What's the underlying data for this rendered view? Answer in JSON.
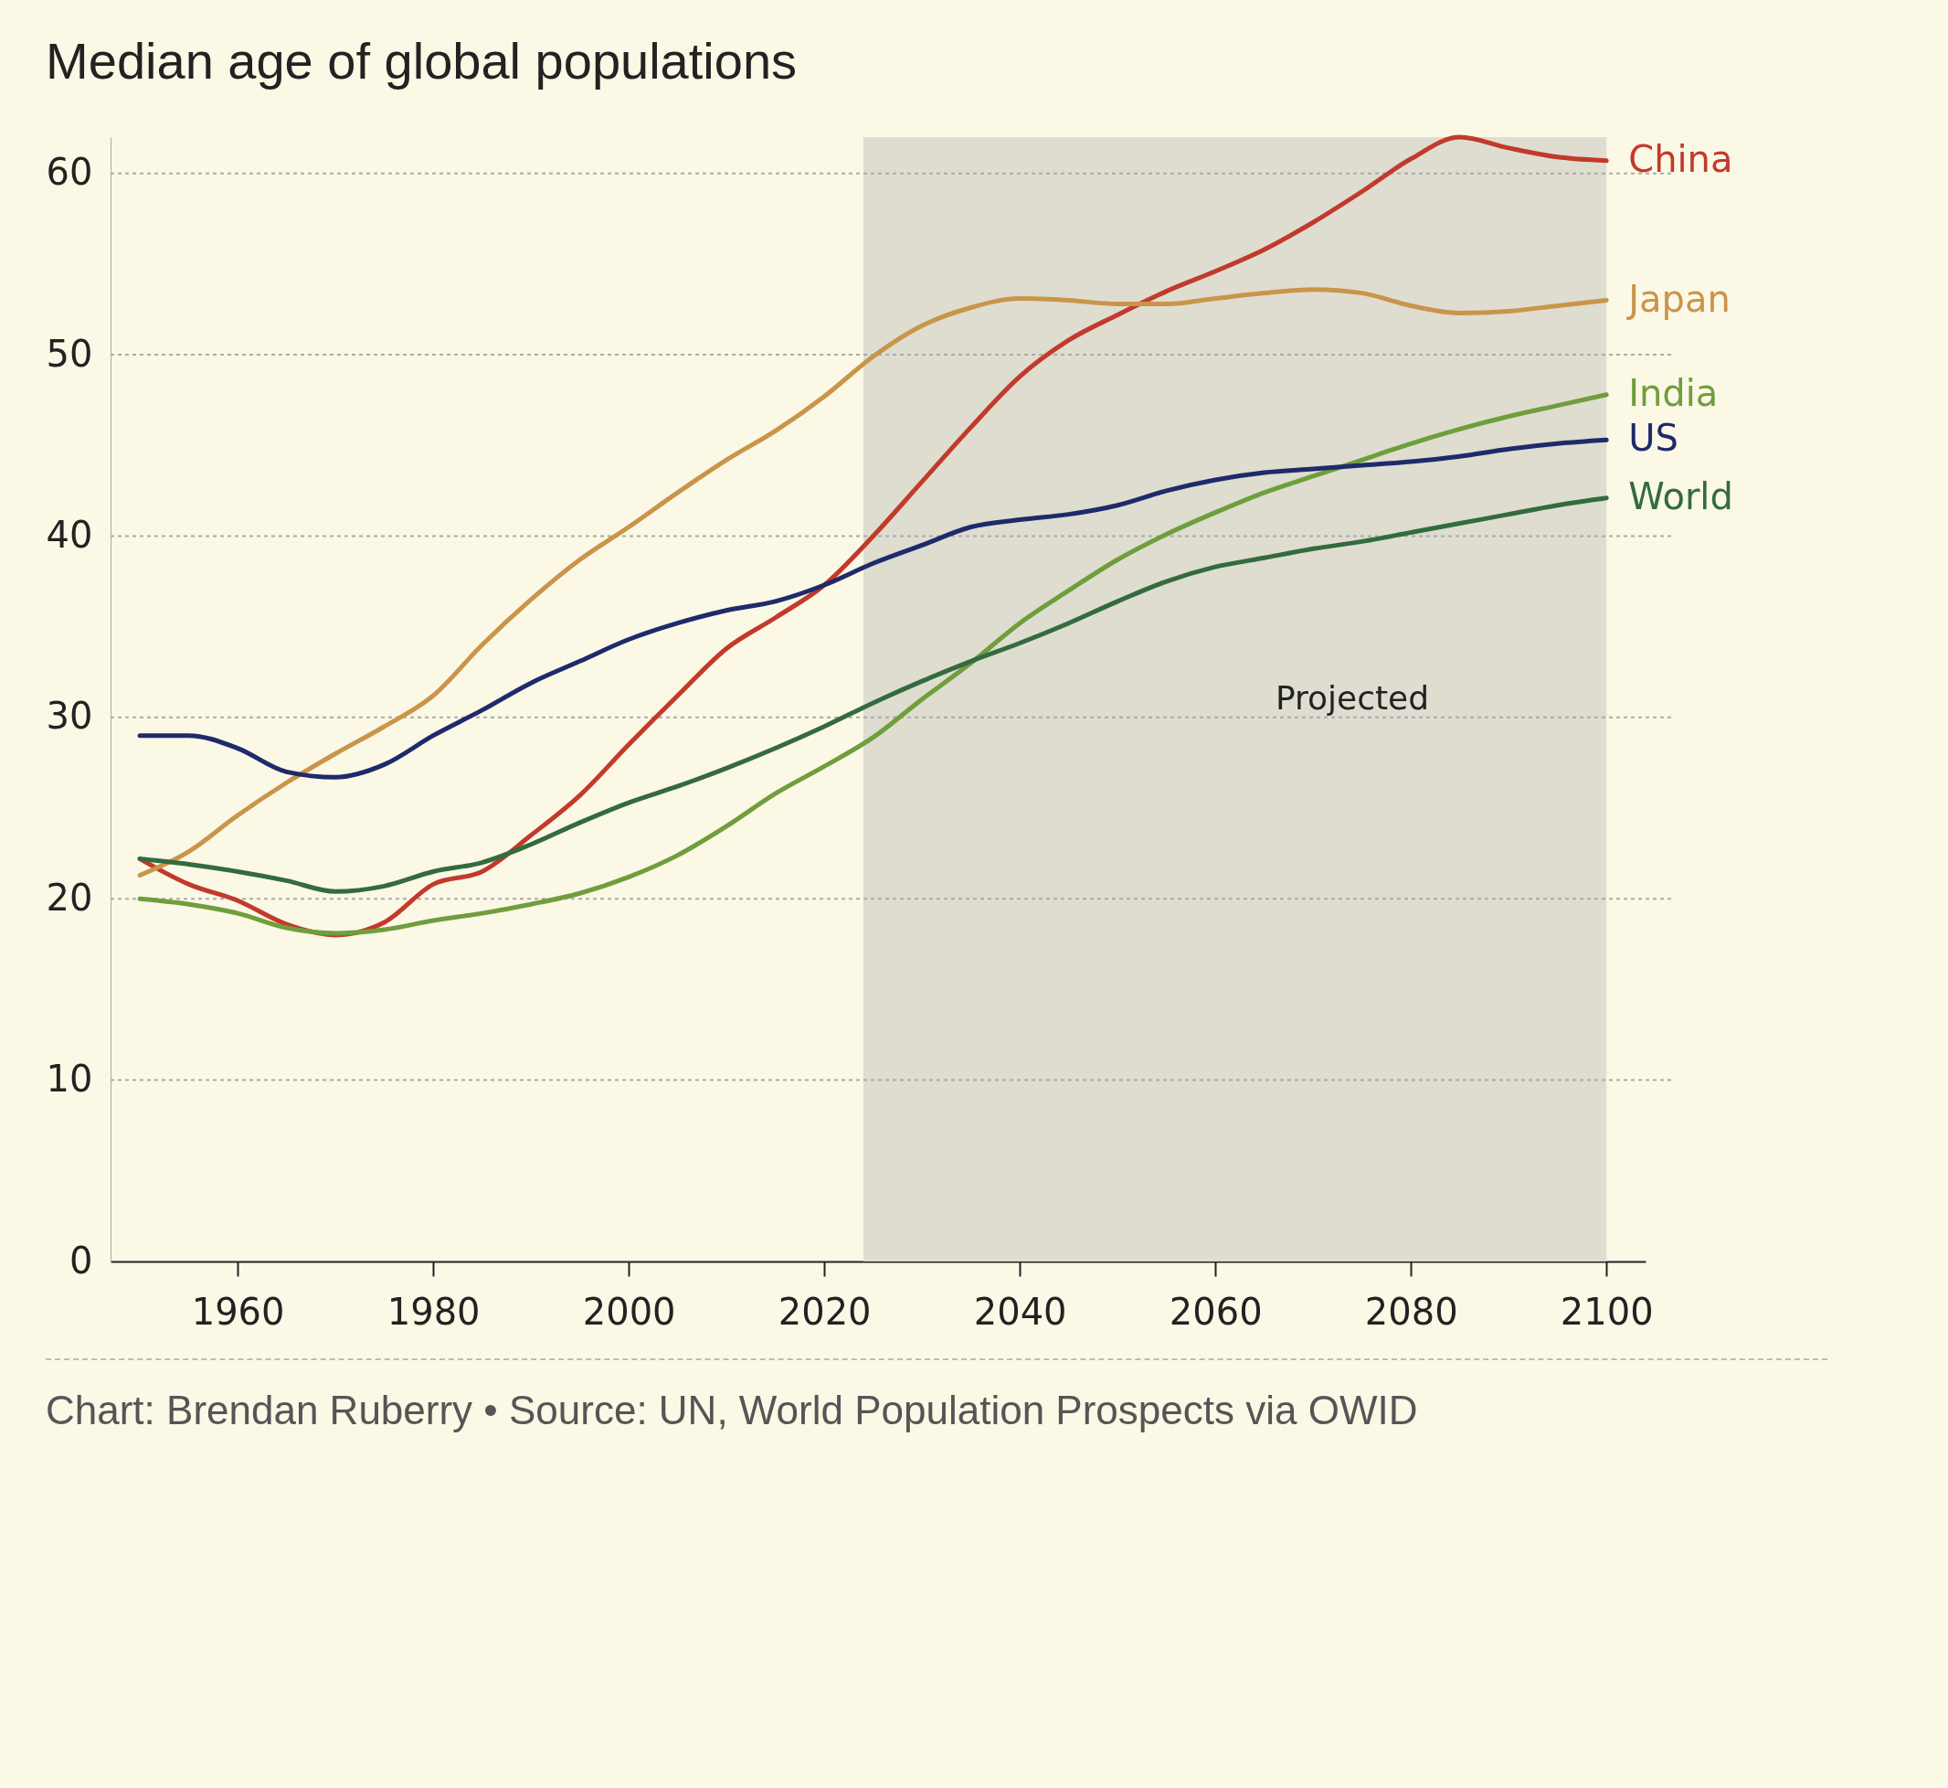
{
  "chart_data": {
    "type": "line",
    "title": "Median age of global populations",
    "x": [
      1950,
      1955,
      1960,
      1965,
      1970,
      1975,
      1980,
      1985,
      1990,
      1995,
      2000,
      2005,
      2010,
      2015,
      2020,
      2025,
      2030,
      2035,
      2040,
      2045,
      2050,
      2055,
      2060,
      2065,
      2070,
      2075,
      2080,
      2085,
      2090,
      2095,
      2100
    ],
    "series": [
      {
        "name": "China",
        "color": "#c23a2b",
        "values": [
          22.2,
          20.8,
          19.9,
          18.6,
          18.0,
          18.7,
          20.8,
          21.5,
          23.5,
          25.7,
          28.5,
          31.2,
          33.8,
          35.5,
          37.3,
          40.0,
          43.0,
          46.0,
          48.8,
          50.8,
          52.2,
          53.5,
          54.6,
          55.8,
          57.3,
          59.0,
          60.8,
          62.0,
          61.4,
          60.9,
          60.7
        ]
      },
      {
        "name": "Japan",
        "color": "#c9954a",
        "values": [
          21.3,
          22.6,
          24.6,
          26.4,
          28.0,
          29.5,
          31.2,
          34.0,
          36.5,
          38.7,
          40.5,
          42.4,
          44.2,
          45.8,
          47.7,
          49.9,
          51.6,
          52.6,
          53.1,
          53.0,
          52.8,
          52.8,
          53.1,
          53.4,
          53.6,
          53.4,
          52.7,
          52.3,
          52.4,
          52.7,
          53.0
        ]
      },
      {
        "name": "India",
        "color": "#6f9e3c",
        "values": [
          20.0,
          19.7,
          19.2,
          18.4,
          18.1,
          18.3,
          18.8,
          19.2,
          19.7,
          20.3,
          21.2,
          22.4,
          24.0,
          25.8,
          27.3,
          28.9,
          31.0,
          33.0,
          35.2,
          37.0,
          38.7,
          40.1,
          41.3,
          42.4,
          43.3,
          44.2,
          45.1,
          45.9,
          46.6,
          47.2,
          47.8
        ]
      },
      {
        "name": "US",
        "color": "#1f2a6b",
        "values": [
          29.0,
          29.0,
          28.3,
          27.0,
          26.7,
          27.4,
          29.0,
          30.4,
          31.9,
          33.1,
          34.3,
          35.2,
          35.9,
          36.4,
          37.3,
          38.5,
          39.5,
          40.5,
          40.9,
          41.2,
          41.7,
          42.5,
          43.1,
          43.5,
          43.7,
          43.9,
          44.1,
          44.4,
          44.8,
          45.1,
          45.3
        ]
      },
      {
        "name": "World",
        "color": "#336b3f",
        "values": [
          22.2,
          21.9,
          21.5,
          21.0,
          20.4,
          20.7,
          21.5,
          22.0,
          23.0,
          24.2,
          25.3,
          26.2,
          27.2,
          28.3,
          29.5,
          30.8,
          32.0,
          33.1,
          34.1,
          35.2,
          36.4,
          37.5,
          38.3,
          38.8,
          39.3,
          39.7,
          40.2,
          40.7,
          41.2,
          41.7,
          42.1
        ]
      }
    ],
    "xlim": [
      1947,
      2104
    ],
    "xticks": [
      1960,
      1980,
      2000,
      2020,
      2040,
      2060,
      2080,
      2100
    ],
    "ylim": [
      0,
      62
    ],
    "yticks": [
      0,
      10,
      20,
      30,
      40,
      50,
      60
    ],
    "grid": "y",
    "line_style": "solid",
    "bands": [
      {
        "axis": "x",
        "from": 2024,
        "to": 2100,
        "label": "Projected",
        "color": "#deddd0"
      }
    ],
    "annotations": [
      "Chart: Brendan Ruberry • Source: UN, World Population Prospects via OWID"
    ]
  }
}
